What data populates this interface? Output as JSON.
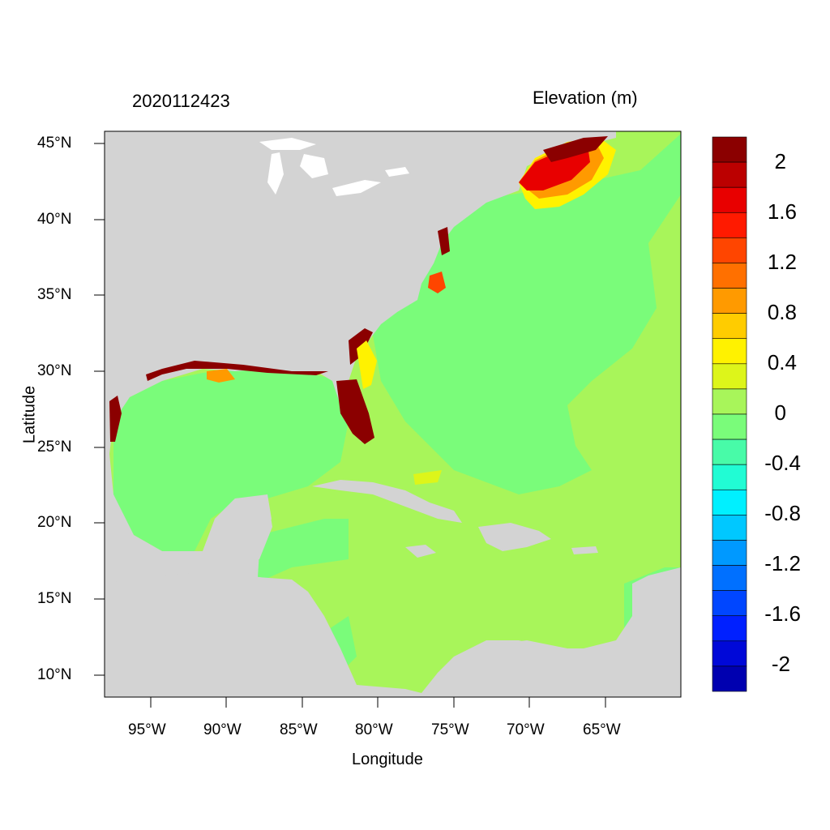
{
  "header": {
    "timestamp": "2020112423",
    "variable": "Elevation (m)"
  },
  "axes": {
    "xlabel": "Longitude",
    "ylabel": "Latitude",
    "lat_ticks": [
      "45°N",
      "40°N",
      "35°N",
      "30°N",
      "25°N",
      "20°N",
      "15°N",
      "10°N"
    ],
    "lon_ticks": [
      "95°W",
      "90°W",
      "85°W",
      "80°W",
      "75°W",
      "70°W",
      "65°W"
    ]
  },
  "colorbar": {
    "labels": [
      "2",
      "1.6",
      "1.2",
      "0.8",
      "0.4",
      "0",
      "-0.4",
      "-0.8",
      "-1.2",
      "-1.6",
      "-2"
    ],
    "colors": [
      "#8b0000",
      "#bb0000",
      "#e80000",
      "#ff1a00",
      "#ff4500",
      "#ff7000",
      "#ff9a00",
      "#ffcc00",
      "#fff200",
      "#ddf51a",
      "#a8f55a",
      "#7afc7a",
      "#48fba8",
      "#21fcd4",
      "#00f0ff",
      "#00c8ff",
      "#0099ff",
      "#0070ff",
      "#0046ff",
      "#0020ff",
      "#0008d8",
      "#0000b0"
    ]
  },
  "map_colors": {
    "land": "#d3d3d3",
    "ocean_base": "#7afc7a",
    "ocean_slight_positive": "#a8f55a",
    "lakes": "#ffffff"
  }
}
